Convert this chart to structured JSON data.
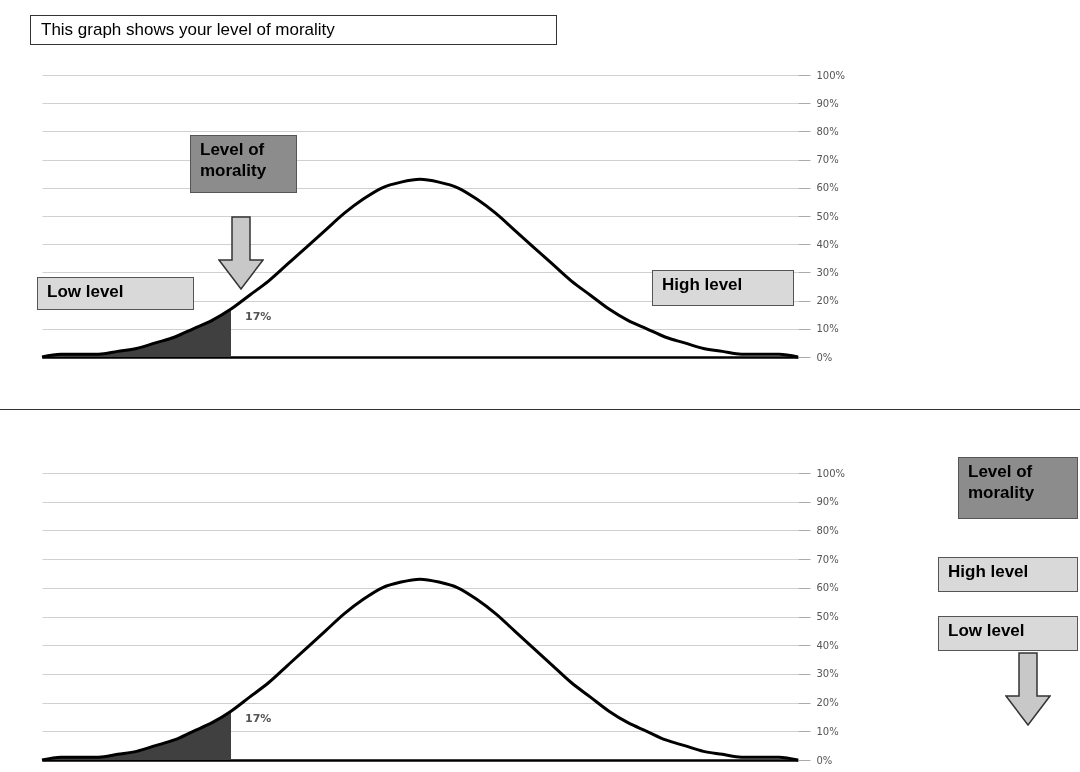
{
  "chart_data": [
    {
      "type": "line",
      "title": "This graph shows your level of morality",
      "annotations": [
        "Level of morality",
        "Low level",
        "High level"
      ],
      "categories": [
        null,
        null,
        null,
        null,
        null,
        null,
        null,
        null,
        null,
        null,
        null,
        null,
        null,
        null,
        null,
        null,
        null,
        null,
        null,
        null,
        null,
        null,
        null,
        null,
        null,
        null,
        null,
        null,
        null,
        null,
        null,
        null,
        null,
        null,
        null,
        null,
        null,
        null,
        null,
        null,
        null
      ],
      "series": [
        {
          "type": "line",
          "color": "#000000",
          "values": [
            0,
            1,
            1,
            1,
            2,
            3,
            5,
            7,
            10,
            13,
            17,
            22,
            27,
            33,
            39,
            45,
            51,
            56,
            60,
            62,
            63,
            62,
            60,
            56,
            51,
            45,
            39,
            33,
            27,
            22,
            17,
            13,
            10,
            7,
            5,
            3,
            2,
            1,
            1,
            1,
            0
          ]
        },
        {
          "type": "area",
          "color": "#404040",
          "values": [
            0,
            1,
            1,
            1,
            2,
            3,
            5,
            7,
            10,
            13,
            17,
            null,
            null,
            null,
            null,
            null,
            null,
            null,
            null,
            null,
            null,
            null,
            null,
            null,
            null,
            null,
            null,
            null,
            null,
            null,
            null,
            null,
            null,
            null,
            null,
            null,
            null,
            null,
            null,
            null,
            null
          ],
          "value_labels": [
            null,
            null,
            null,
            null,
            null,
            null,
            null,
            null,
            null,
            null,
            "17%",
            null,
            null,
            null,
            null,
            null,
            null,
            null,
            null,
            null,
            null,
            null,
            null,
            null,
            null,
            null,
            null,
            null,
            null,
            null,
            null,
            null,
            null,
            null,
            null,
            null,
            null,
            null,
            null,
            null,
            null
          ]
        }
      ],
      "ylim": [
        0,
        100
      ],
      "yticks": [
        {
          "value": 0,
          "label": "0%"
        },
        {
          "value": 10,
          "label": "10%"
        },
        {
          "value": 20,
          "label": "20%"
        },
        {
          "value": 30,
          "label": "30%"
        },
        {
          "value": 40,
          "label": "40%"
        },
        {
          "value": 50,
          "label": "50%"
        },
        {
          "value": 60,
          "label": "60%"
        },
        {
          "value": 70,
          "label": "70%"
        },
        {
          "value": 80,
          "label": "80%"
        },
        {
          "value": 90,
          "label": "90%"
        },
        {
          "value": 100,
          "label": "100%"
        }
      ],
      "grid": "y",
      "tick_labels": "y"
    },
    {
      "type": "line",
      "annotations": [
        "Level of morality",
        "High level",
        "Low level"
      ],
      "categories": [
        null,
        null,
        null,
        null,
        null,
        null,
        null,
        null,
        null,
        null,
        null,
        null,
        null,
        null,
        null,
        null,
        null,
        null,
        null,
        null,
        null,
        null,
        null,
        null,
        null,
        null,
        null,
        null,
        null,
        null,
        null,
        null,
        null,
        null,
        null,
        null,
        null,
        null,
        null,
        null,
        null
      ],
      "series": [
        {
          "type": "line",
          "color": "#000000",
          "values": [
            0,
            1,
            1,
            1,
            2,
            3,
            5,
            7,
            10,
            13,
            17,
            22,
            27,
            33,
            39,
            45,
            51,
            56,
            60,
            62,
            63,
            62,
            60,
            56,
            51,
            45,
            39,
            33,
            27,
            22,
            17,
            13,
            10,
            7,
            5,
            3,
            2,
            1,
            1,
            1,
            0
          ]
        },
        {
          "type": "area",
          "color": "#404040",
          "values": [
            0,
            1,
            1,
            1,
            2,
            3,
            5,
            7,
            10,
            13,
            17,
            null,
            null,
            null,
            null,
            null,
            null,
            null,
            null,
            null,
            null,
            null,
            null,
            null,
            null,
            null,
            null,
            null,
            null,
            null,
            null,
            null,
            null,
            null,
            null,
            null,
            null,
            null,
            null,
            null,
            null
          ],
          "value_labels": [
            null,
            null,
            null,
            null,
            null,
            null,
            null,
            null,
            null,
            null,
            "17%",
            null,
            null,
            null,
            null,
            null,
            null,
            null,
            null,
            null,
            null,
            null,
            null,
            null,
            null,
            null,
            null,
            null,
            null,
            null,
            null,
            null,
            null,
            null,
            null,
            null,
            null,
            null,
            null,
            null,
            null
          ]
        }
      ],
      "ylim": [
        0,
        100
      ],
      "yticks": [
        {
          "value": 0,
          "label": "0%"
        },
        {
          "value": 10,
          "label": "10%"
        },
        {
          "value": 20,
          "label": "20%"
        },
        {
          "value": 30,
          "label": "30%"
        },
        {
          "value": 40,
          "label": "40%"
        },
        {
          "value": 50,
          "label": "50%"
        },
        {
          "value": 60,
          "label": "60%"
        },
        {
          "value": 70,
          "label": "70%"
        },
        {
          "value": 80,
          "label": "80%"
        },
        {
          "value": 90,
          "label": "90%"
        },
        {
          "value": 100,
          "label": "100%"
        }
      ],
      "grid": "y",
      "tick_labels": "y"
    }
  ]
}
